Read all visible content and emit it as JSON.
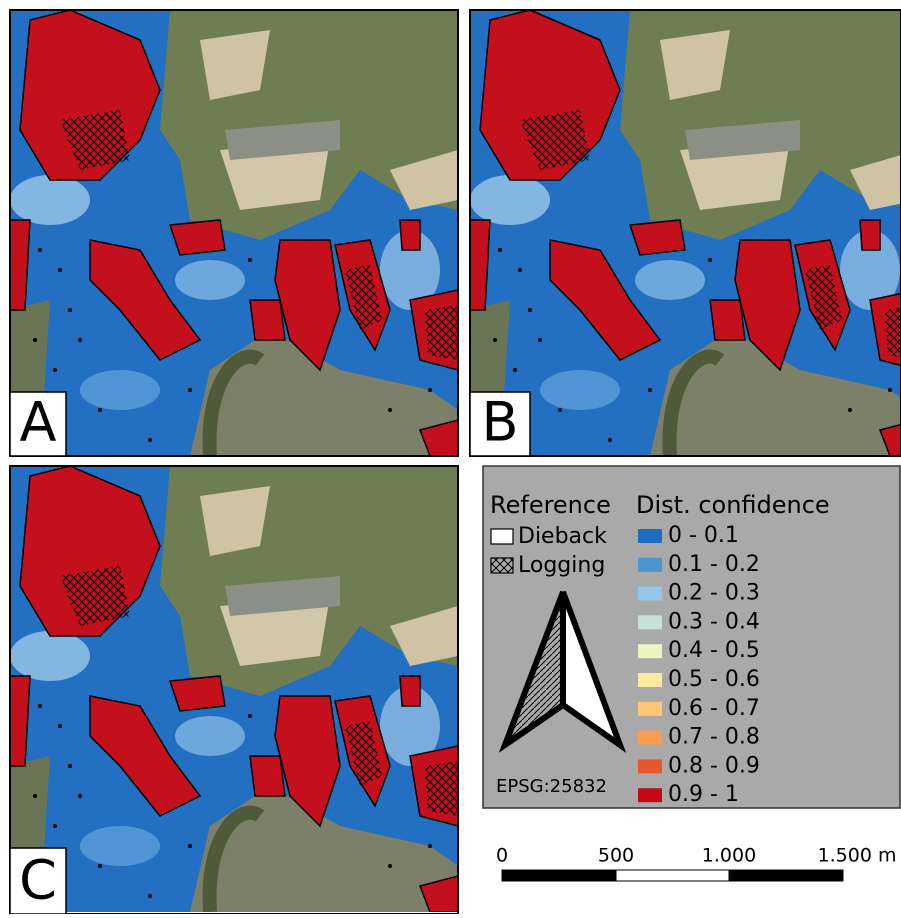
{
  "panels": [
    {
      "label": "A"
    },
    {
      "label": "B"
    },
    {
      "label": "C"
    }
  ],
  "legend": {
    "reference_title": "Reference",
    "confidence_title": "Dist. confidence",
    "reference": [
      {
        "label": "Dieback"
      },
      {
        "label": "Logging"
      }
    ],
    "classes": [
      {
        "label": "0 - 0.1",
        "color": "#1f6cc0"
      },
      {
        "label": "0.1 - 0.2",
        "color": "#4b93d1"
      },
      {
        "label": "0.2 - 0.3",
        "color": "#96c6e8"
      },
      {
        "label": "0.3 - 0.4",
        "color": "#c4e3d6"
      },
      {
        "label": "0.4 - 0.5",
        "color": "#eef3c4"
      },
      {
        "label": "0.5 - 0.6",
        "color": "#fde9a2"
      },
      {
        "label": "0.6 - 0.7",
        "color": "#fdc777"
      },
      {
        "label": "0.7 - 0.8",
        "color": "#fb9d4e"
      },
      {
        "label": "0.8 - 0.9",
        "color": "#e8552f"
      },
      {
        "label": "0.9 - 1",
        "color": "#c40a1a"
      }
    ],
    "crs": "EPSG:25832"
  },
  "scale_bar": {
    "labels": [
      "0",
      "500",
      "1.000",
      "1.500 m"
    ]
  }
}
